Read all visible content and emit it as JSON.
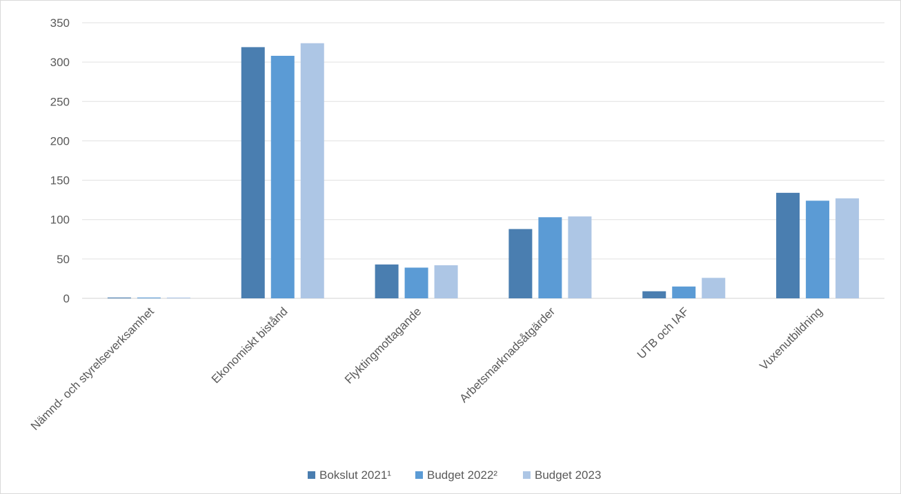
{
  "chart_data": {
    "type": "bar",
    "categories": [
      "Nämnd- och styrelseverksamhet",
      "Ekonomiskt bistånd",
      "Flyktingmottagande",
      "Arbetsmarknadsåtgärder",
      "UTB och IAF",
      "Vuxenutbildning"
    ],
    "series": [
      {
        "name": "Bokslut 2021¹",
        "color": "#4a7eb0",
        "values": [
          1,
          319,
          43,
          88,
          9,
          134
        ]
      },
      {
        "name": "Budget 2022²",
        "color": "#5b9bd5",
        "values": [
          1,
          308,
          39,
          103,
          15,
          124
        ]
      },
      {
        "name": "Budget 2023",
        "color": "#adc6e5",
        "values": [
          1,
          324,
          42,
          104,
          26,
          127
        ]
      }
    ],
    "y_ticks": [
      "0",
      "50",
      "100",
      "150",
      "200",
      "250",
      "300",
      "350"
    ],
    "ylim": [
      0,
      350
    ],
    "grid": true,
    "legend_position": "bottom"
  }
}
